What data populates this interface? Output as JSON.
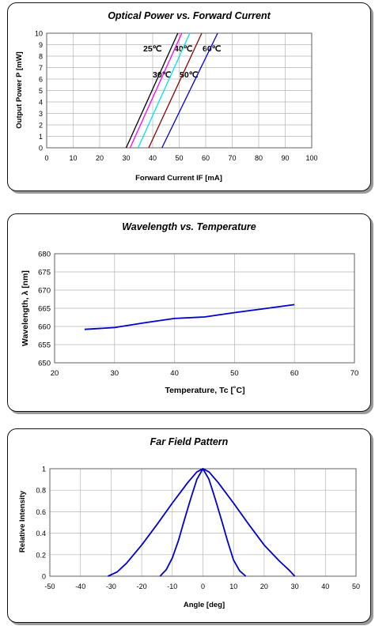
{
  "charts": [
    {
      "title": "Optical Power vs. Forward Current",
      "xlabel": "Forward Current IF [mA]",
      "ylabel": "Output Power P [mW]",
      "series_labels": [
        {
          "text": "25℃"
        },
        {
          "text": "40℃"
        },
        {
          "text": "60℃"
        },
        {
          "text": "30℃"
        },
        {
          "text": "50℃"
        }
      ]
    },
    {
      "title": "Wavelength vs. Temperature",
      "xlabel": "Temperature, Tc [˚C]",
      "ylabel": "Wavelength, λ [nm]"
    },
    {
      "title": "Far Field Pattern",
      "xlabel": "Angle [deg]",
      "ylabel": "Relative Intensity"
    }
  ],
  "chart_data": [
    {
      "type": "line",
      "title": "Optical Power vs. Forward Current",
      "xlabel": "Forward Current IF [mA]",
      "ylabel": "Output Power P [mW]",
      "xlim": [
        0,
        100
      ],
      "ylim": [
        0,
        10
      ],
      "xticks": [
        0,
        10,
        20,
        30,
        40,
        50,
        60,
        70,
        80,
        90,
        100
      ],
      "yticks": [
        0,
        1,
        2,
        3,
        4,
        5,
        6,
        7,
        8,
        9,
        10
      ],
      "grid": true,
      "series": [
        {
          "name": "25℃",
          "color": "#000000",
          "x": [
            30,
            49.5
          ],
          "y": [
            0,
            10
          ]
        },
        {
          "name": "30℃",
          "color": "#ff00ff",
          "x": [
            31.5,
            51
          ],
          "y": [
            0,
            10
          ]
        },
        {
          "name": "40℃",
          "color": "#00e5e5",
          "x": [
            34.5,
            54
          ],
          "y": [
            0,
            10
          ]
        },
        {
          "name": "50℃",
          "color": "#8b0000",
          "x": [
            38.5,
            58.5
          ],
          "y": [
            0,
            10
          ]
        },
        {
          "name": "60℃",
          "color": "#0000cc",
          "x": [
            43.5,
            64.5
          ],
          "y": [
            0,
            10
          ]
        }
      ]
    },
    {
      "type": "line",
      "title": "Wavelength vs. Temperature",
      "xlabel": "Temperature, Tc [˚C]",
      "ylabel": "Wavelength, λ [nm]",
      "xlim": [
        20,
        70
      ],
      "ylim": [
        650,
        680
      ],
      "xticks": [
        20,
        30,
        40,
        50,
        60,
        70
      ],
      "yticks": [
        650,
        655,
        660,
        665,
        670,
        675,
        680
      ],
      "grid": true,
      "series": [
        {
          "color": "#0000cc",
          "x": [
            25,
            30,
            35,
            40,
            45,
            50,
            55,
            60
          ],
          "y": [
            659.2,
            659.7,
            661.0,
            662.2,
            662.6,
            663.8,
            664.9,
            666.0
          ]
        }
      ]
    },
    {
      "type": "line",
      "title": "Far Field Pattern",
      "xlabel": "Angle [deg]",
      "ylabel": "Relative Intensity",
      "xlim": [
        -50,
        50
      ],
      "ylim": [
        0,
        1
      ],
      "xticks": [
        -50,
        -40,
        -30,
        -20,
        -10,
        0,
        10,
        20,
        30,
        40,
        50
      ],
      "yticks": [
        0,
        0.2,
        0.4,
        0.6,
        0.8,
        1
      ],
      "grid": true,
      "series": [
        {
          "color": "#0000cc",
          "x": [
            -31,
            -28,
            -25,
            -20,
            -15,
            -10,
            -5,
            -2,
            0,
            2,
            5,
            10,
            15,
            20,
            25,
            28,
            30
          ],
          "y": [
            0,
            0.04,
            0.12,
            0.29,
            0.48,
            0.68,
            0.87,
            0.97,
            1.0,
            0.97,
            0.87,
            0.68,
            0.48,
            0.29,
            0.14,
            0.06,
            0.0
          ]
        },
        {
          "color": "#0000cc",
          "x": [
            -14,
            -12,
            -10,
            -8,
            -6,
            -4,
            -2,
            0,
            2,
            4,
            6,
            8,
            10,
            12,
            14
          ],
          "y": [
            0,
            0.06,
            0.17,
            0.33,
            0.53,
            0.72,
            0.9,
            1.0,
            0.9,
            0.72,
            0.53,
            0.33,
            0.15,
            0.05,
            0
          ]
        }
      ]
    }
  ]
}
